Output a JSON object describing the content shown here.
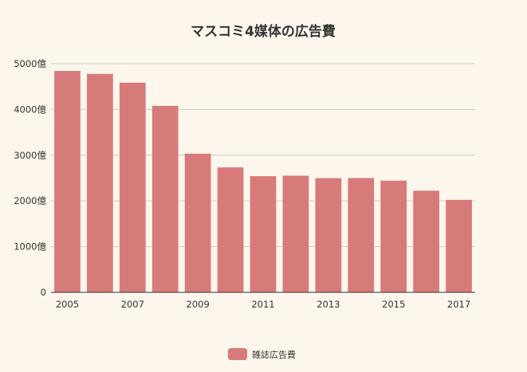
{
  "chart_data": {
    "type": "bar",
    "title": "マスコミ4媒体の広告費",
    "categories": [
      "2005",
      "2006",
      "2007",
      "2008",
      "2009",
      "2010",
      "2011",
      "2012",
      "2013",
      "2014",
      "2015",
      "2016",
      "2017"
    ],
    "x_tick_labels": [
      "2005",
      "2007",
      "2009",
      "2011",
      "2013",
      "2015",
      "2017"
    ],
    "y_tick_labels": [
      "0",
      "1000億",
      "2000億",
      "3000億",
      "4000億",
      "5000億"
    ],
    "y_ticks": [
      0,
      1000,
      2000,
      3000,
      4000,
      5000
    ],
    "ylim": [
      0,
      5000
    ],
    "series": [
      {
        "name": "雑誌広告費",
        "values": [
          4842,
          4777,
          4585,
          4078,
          3034,
          2733,
          2542,
          2551,
          2499,
          2500,
          2443,
          2223,
          2023
        ]
      }
    ],
    "grid": true,
    "legend_position": "bottom",
    "colors": {
      "bar": "#d77b7a",
      "background": "#fdf6ec",
      "grid": "#cccccc",
      "axis": "#333333"
    }
  }
}
